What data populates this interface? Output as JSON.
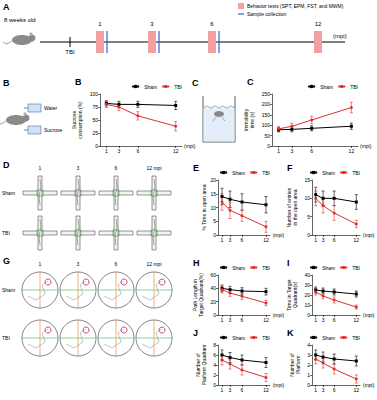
{
  "timeline": {
    "label": "A",
    "age": "8 weeks old",
    "event": "TBI",
    "timepoints": [
      "1",
      "3",
      "6",
      "12"
    ],
    "unit": "(mpi)",
    "sample_collection": [
      true,
      true,
      true,
      false
    ],
    "legend": [
      {
        "label": "Behavior tests (SPT, EPM, FST, and MWM)",
        "color": "#f2a0a0"
      },
      {
        "label": "Sample collection",
        "color": "#3a5fcd"
      }
    ]
  },
  "spt_setup": {
    "label": "B",
    "bottles": [
      "Water",
      "Sucrose"
    ]
  },
  "fst_setup": {
    "label": "C"
  },
  "epm_traces": {
    "label": "D",
    "columns": [
      "1",
      "3",
      "6",
      "12 mpi"
    ],
    "rows": [
      "Sham",
      "TBI"
    ]
  },
  "mwm_traces": {
    "label": "G",
    "columns": [
      "1",
      "3",
      "6",
      "12 mpi"
    ],
    "rows": [
      "Sham",
      "TBI"
    ]
  },
  "chart_data": [
    {
      "label": "B",
      "type": "line",
      "xlabel": "(mpi)",
      "ylabel": "Sucrose consumption (%)",
      "x": [
        1,
        3,
        6,
        12
      ],
      "xlim": [
        0,
        13
      ],
      "xticks": [
        1,
        3,
        6,
        12
      ],
      "ylim": [
        0,
        100
      ],
      "yticks": [
        0,
        25,
        50,
        75,
        100
      ],
      "grid": false,
      "legend": "top right",
      "series": [
        {
          "name": "Sham",
          "color": "#000000",
          "marker": "square",
          "values": [
            82,
            80,
            80,
            78
          ],
          "errors": [
            5,
            6,
            6,
            8
          ]
        },
        {
          "name": "TBI",
          "color": "#e0312b",
          "marker": "circle",
          "values": [
            80,
            75,
            58,
            38
          ],
          "errors": [
            6,
            7,
            8,
            9
          ]
        }
      ]
    },
    {
      "label": "C",
      "type": "line",
      "xlabel": "(mpi)",
      "ylabel": "Immobility time (s)",
      "x": [
        1,
        3,
        6,
        12
      ],
      "xlim": [
        0,
        13
      ],
      "xticks": [
        1,
        3,
        6,
        12
      ],
      "ylim": [
        0,
        250
      ],
      "yticks": [
        0,
        50,
        100,
        150,
        200,
        250
      ],
      "grid": false,
      "legend": "top right",
      "series": [
        {
          "name": "Sham",
          "color": "#000000",
          "marker": "square",
          "values": [
            78,
            80,
            85,
            95
          ],
          "errors": [
            10,
            12,
            12,
            15
          ]
        },
        {
          "name": "TBI",
          "color": "#e0312b",
          "marker": "circle",
          "values": [
            82,
            95,
            125,
            185
          ],
          "errors": [
            12,
            15,
            18,
            25
          ]
        }
      ]
    },
    {
      "label": "E",
      "type": "line",
      "xlabel": "(mpi)",
      "ylabel": "% Time in open area",
      "x": [
        1,
        3,
        6,
        12
      ],
      "xlim": [
        0,
        13
      ],
      "xticks": [
        1,
        3,
        6,
        12
      ],
      "ylim": [
        0,
        20
      ],
      "yticks": [
        0,
        5,
        10,
        15,
        20
      ],
      "grid": false,
      "legend": "top right",
      "series": [
        {
          "name": "Sham",
          "color": "#000000",
          "marker": "square",
          "values": [
            14,
            13,
            12,
            11
          ],
          "errors": [
            3,
            3,
            3,
            3
          ]
        },
        {
          "name": "TBI",
          "color": "#e0312b",
          "marker": "circle",
          "values": [
            12,
            9,
            7,
            3
          ],
          "errors": [
            3,
            3,
            2,
            2
          ]
        }
      ]
    },
    {
      "label": "F",
      "type": "line",
      "xlabel": "(mpi)",
      "ylabel": "Number of entries in the open area",
      "x": [
        1,
        3,
        6,
        12
      ],
      "xlim": [
        0,
        13
      ],
      "xticks": [
        1,
        3,
        6,
        12
      ],
      "ylim": [
        0,
        15
      ],
      "yticks": [
        0,
        5,
        10,
        15
      ],
      "grid": false,
      "legend": "top right",
      "series": [
        {
          "name": "Sham",
          "color": "#000000",
          "marker": "square",
          "values": [
            11,
            10,
            10,
            9
          ],
          "errors": [
            2,
            2,
            2,
            2
          ]
        },
        {
          "name": "TBI",
          "color": "#e0312b",
          "marker": "circle",
          "values": [
            10,
            8,
            6,
            3
          ],
          "errors": [
            2,
            2,
            2,
            1
          ]
        }
      ]
    },
    {
      "label": "H",
      "type": "line",
      "xlabel": "(mpi)",
      "ylabel": "Path Length in Target Quadrant(%)",
      "x": [
        1,
        3,
        6,
        12
      ],
      "xlim": [
        0,
        13
      ],
      "xticks": [
        1,
        3,
        6,
        12
      ],
      "ylim": [
        0,
        60
      ],
      "yticks": [
        0,
        20,
        40,
        60
      ],
      "grid": false,
      "legend": "top right",
      "series": [
        {
          "name": "Sham",
          "color": "#000000",
          "marker": "square",
          "values": [
            40,
            38,
            36,
            35
          ],
          "errors": [
            5,
            5,
            5,
            5
          ]
        },
        {
          "name": "TBI",
          "color": "#e0312b",
          "marker": "circle",
          "values": [
            38,
            33,
            28,
            18
          ],
          "errors": [
            5,
            5,
            5,
            4
          ]
        }
      ]
    },
    {
      "label": "I",
      "type": "line",
      "xlabel": "(mpi)",
      "ylabel": "Time in Target Quadrant(s)",
      "x": [
        1,
        3,
        6,
        12
      ],
      "xlim": [
        0,
        13
      ],
      "xticks": [
        1,
        3,
        6,
        12
      ],
      "ylim": [
        0,
        40
      ],
      "yticks": [
        0,
        10,
        20,
        30,
        40
      ],
      "grid": false,
      "legend": "top right",
      "series": [
        {
          "name": "Sham",
          "color": "#000000",
          "marker": "square",
          "values": [
            25,
            24,
            23,
            21
          ],
          "errors": [
            3,
            3,
            3,
            3
          ]
        },
        {
          "name": "TBI",
          "color": "#e0312b",
          "marker": "circle",
          "values": [
            23,
            19,
            15,
            8
          ],
          "errors": [
            3,
            3,
            3,
            2
          ]
        }
      ]
    },
    {
      "label": "J",
      "type": "line",
      "xlabel": "(mpi)",
      "ylabel": "Number of Platform Quadrant",
      "x": [
        1,
        3,
        6,
        12
      ],
      "xlim": [
        0,
        13
      ],
      "xticks": [
        1,
        3,
        6,
        12
      ],
      "ylim": [
        0,
        8
      ],
      "yticks": [
        0,
        2,
        4,
        6,
        8
      ],
      "grid": false,
      "legend": "top right",
      "series": [
        {
          "name": "Sham",
          "color": "#000000",
          "marker": "square",
          "values": [
            6,
            5.5,
            5,
            4.5
          ],
          "errors": [
            1,
            1,
            1,
            1
          ]
        },
        {
          "name": "TBI",
          "color": "#e0312b",
          "marker": "circle",
          "values": [
            5,
            4.2,
            3,
            1.5
          ],
          "errors": [
            1,
            1,
            1,
            0.8
          ]
        }
      ]
    },
    {
      "label": "K",
      "type": "line",
      "xlabel": "(mpi)",
      "ylabel": "Number of Platform",
      "x": [
        1,
        3,
        6,
        12
      ],
      "xlim": [
        0,
        13
      ],
      "xticks": [
        1,
        3,
        6,
        12
      ],
      "ylim": [
        0,
        4
      ],
      "yticks": [
        0,
        1,
        2,
        3,
        4
      ],
      "grid": false,
      "legend": "top right",
      "series": [
        {
          "name": "Sham",
          "color": "#000000",
          "marker": "square",
          "values": [
            3,
            2.8,
            2.6,
            2.4
          ],
          "errors": [
            0.5,
            0.5,
            0.5,
            0.5
          ]
        },
        {
          "name": "TBI",
          "color": "#e0312b",
          "marker": "circle",
          "values": [
            2.6,
            2.2,
            1.6,
            0.6
          ],
          "errors": [
            0.5,
            0.5,
            0.5,
            0.4
          ]
        }
      ]
    }
  ]
}
